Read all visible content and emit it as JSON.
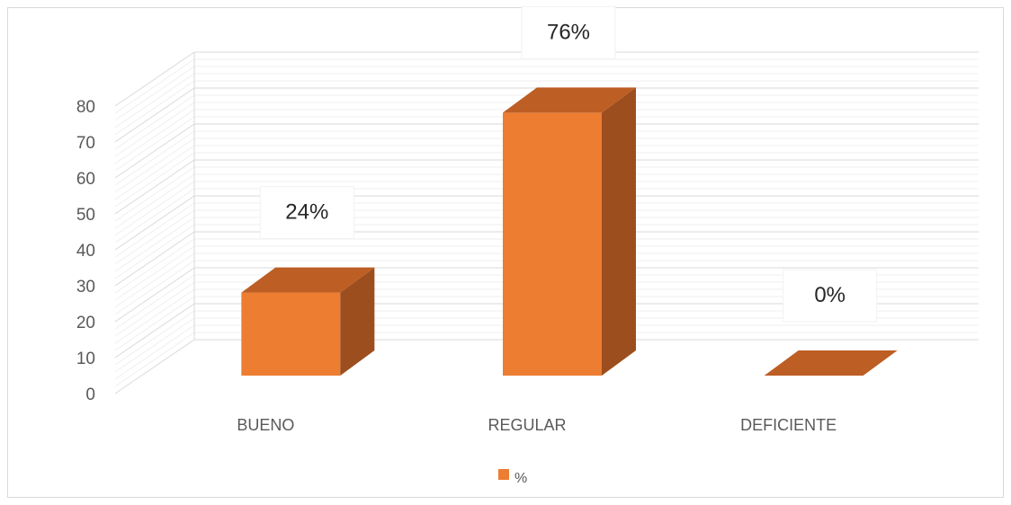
{
  "chart_data": {
    "type": "bar",
    "categories": [
      "BUENO",
      "REGULAR",
      "DEFICIENTE"
    ],
    "series": [
      {
        "name": "%",
        "values": [
          24,
          76,
          0
        ],
        "color": "#ED7D31"
      }
    ],
    "data_labels": [
      "24%",
      "76%",
      "0%"
    ],
    "ylim": [
      0,
      80
    ],
    "yticks": [
      0,
      10,
      20,
      30,
      40,
      50,
      60,
      70,
      80
    ],
    "grid": true,
    "legend": "bottom",
    "style": "3d-column"
  },
  "colors": {
    "bar_front": "#ED7D31",
    "bar_side": "#9C4E1E",
    "bar_top": "#BD5E24",
    "grid": "#d9d9d9",
    "text": "#595959"
  }
}
